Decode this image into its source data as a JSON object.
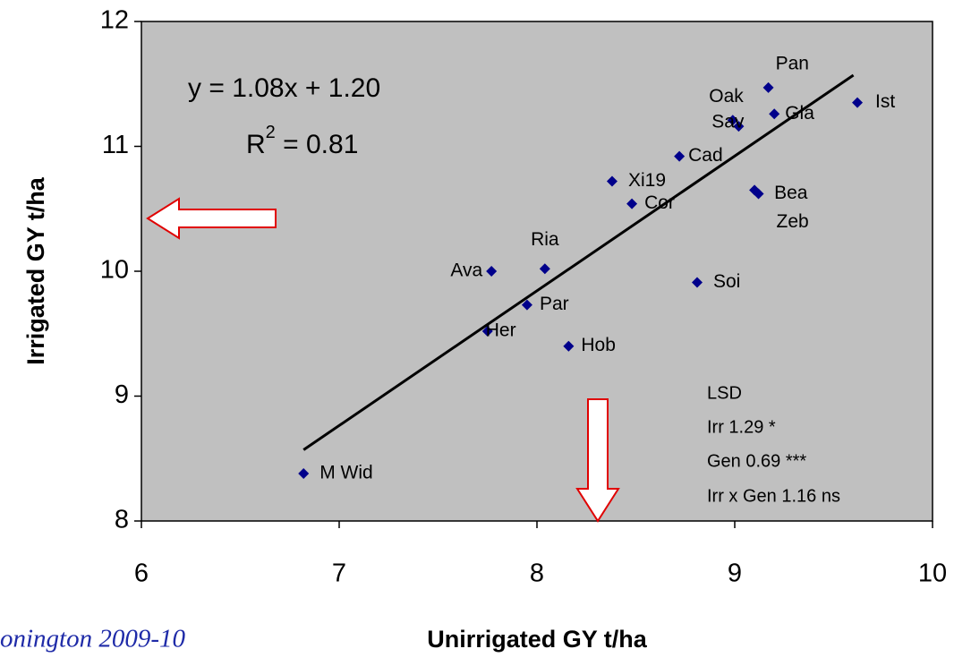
{
  "chart_data": {
    "type": "scatter",
    "xlabel": "Unirrigated GY t/ha",
    "ylabel": "Irrigated GY t/ha",
    "footer": "onington 2009-10",
    "xlim": [
      6,
      10
    ],
    "xticks": [
      6,
      7,
      8,
      9,
      10
    ],
    "ylim": [
      8,
      12
    ],
    "yticks": [
      8,
      9,
      10,
      11,
      12
    ],
    "color": "#00008b",
    "plot_background": "#c0c0c0",
    "labels": [
      "Pan",
      "Ist",
      "Gla",
      "Oak",
      "Sav",
      "Cad",
      "Xi19",
      "Cor",
      "Bea",
      "Zeb",
      "Ria",
      "Ava",
      "Soi",
      "Par",
      "Her",
      "Hob",
      "M Wid"
    ],
    "x": [
      9.17,
      9.62,
      9.2,
      8.99,
      9.02,
      8.72,
      8.38,
      8.48,
      9.1,
      9.12,
      8.04,
      7.77,
      8.81,
      7.95,
      7.75,
      8.16,
      6.82
    ],
    "y": [
      11.47,
      11.35,
      11.26,
      11.21,
      11.16,
      10.92,
      10.72,
      10.54,
      10.65,
      10.62,
      10.02,
      10.0,
      9.91,
      9.73,
      9.52,
      9.4,
      8.38
    ],
    "trendline": {
      "x": [
        6.82,
        9.6
      ],
      "y": [
        8.57,
        11.57
      ],
      "color": "#000000"
    },
    "equation": "y = 1.08x + 1.20",
    "r2": {
      "base": "R",
      "sup": "2",
      "rest": " = 0.81"
    },
    "lsd": [
      "LSD",
      "Irr 1.29 *",
      "Gen 0.69 ***",
      "Irr x Gen 1.16 ns"
    ]
  }
}
